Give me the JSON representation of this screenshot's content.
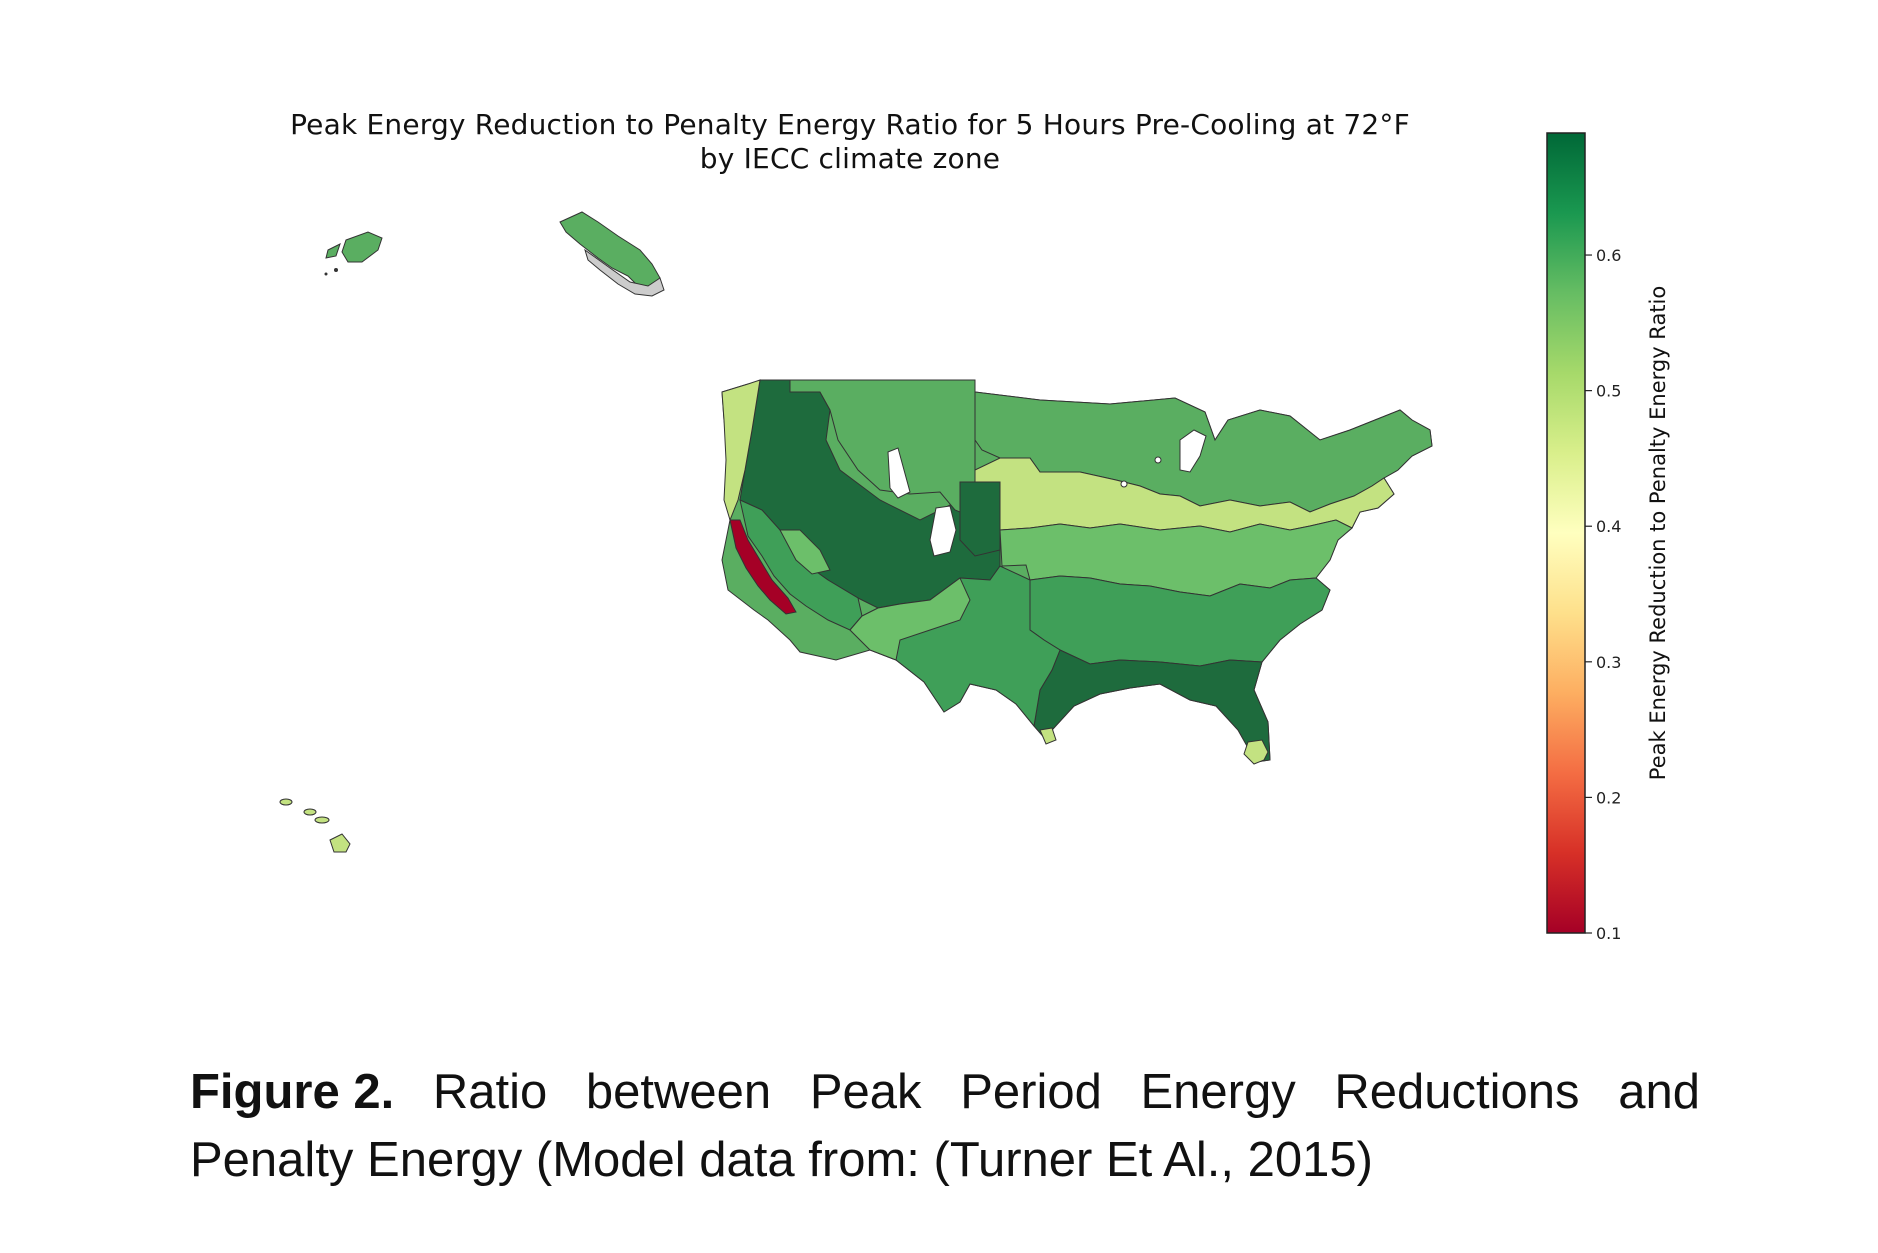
{
  "figure": {
    "title_line1": "Peak Energy Reduction to Penalty Energy Ratio for 5 Hours Pre-Cooling at 72°F",
    "title_line2": "by IECC climate zone",
    "caption_label": "Figure 2.",
    "caption_words_line1": [
      "Ratio",
      "between",
      "Peak",
      "Period",
      "Energy",
      "Reductions",
      "and"
    ],
    "caption_line2": "Penalty Energy (Model data from:  (Turner Et Al., 2015)"
  },
  "colorbar": {
    "label": "Peak Energy Reduction to Penalty Energy Ratio",
    "min": 0.1,
    "max": 0.69,
    "ticks": [
      0.1,
      0.2,
      0.3,
      0.4,
      0.5,
      0.6
    ],
    "tick_labels": [
      "0.1",
      "0.2",
      "0.3",
      "0.4",
      "0.5",
      "0.6"
    ],
    "colormap": "RdYlGn",
    "stops": [
      "#a50026",
      "#d73027",
      "#f46d43",
      "#fdae61",
      "#fee08b",
      "#ffffbf",
      "#d9ef8b",
      "#a6d96a",
      "#66bd63",
      "#1a9850",
      "#006837"
    ]
  },
  "colors": {
    "dark_green": "#1e6b3d",
    "mid_green": "#3f9f58",
    "green": "#5aae61",
    "light_green": "#8cc97b",
    "yellow_green": "#c3e281",
    "red": "#a50026",
    "gray": "#cccccc",
    "border": "#333333"
  },
  "chart_data": {
    "type": "map",
    "title": "Peak Energy Reduction to Penalty Energy Ratio for 5 Hours Pre-Cooling at 72°F by IECC climate zone",
    "colorbar_label": "Peak Energy Reduction to Penalty Energy Ratio",
    "colorbar_range": [
      0.1,
      0.69
    ],
    "colorbar_ticks": [
      0.1,
      0.2,
      0.3,
      0.4,
      0.5,
      0.6
    ],
    "colormap": "RdYlGn",
    "grid": false
  }
}
